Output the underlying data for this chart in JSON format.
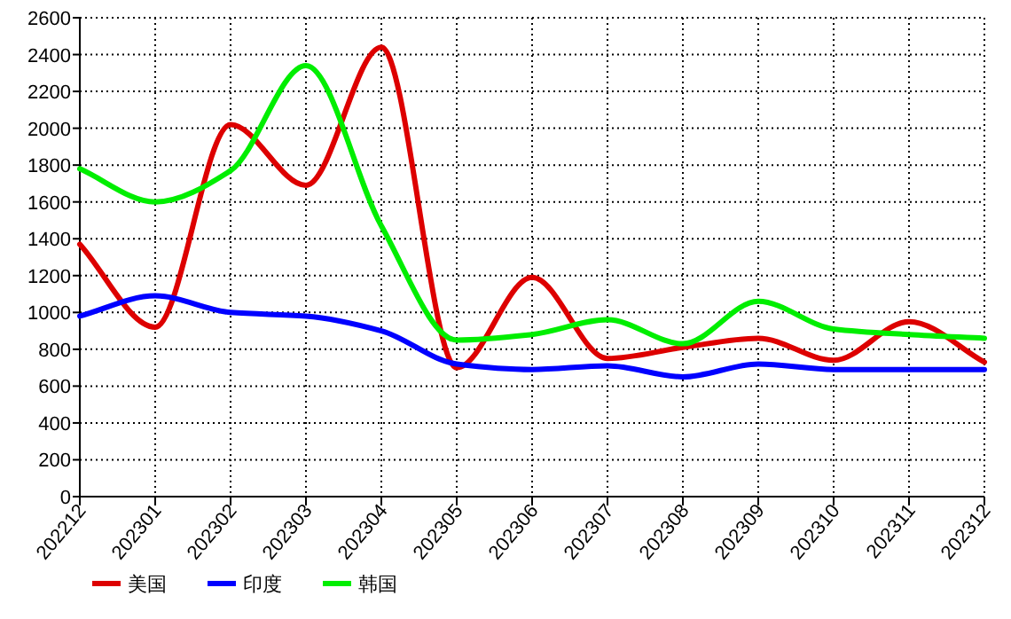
{
  "chart_data": {
    "type": "line",
    "categories": [
      "202212",
      "202301",
      "202302",
      "202303",
      "202304",
      "202305",
      "202306",
      "202307",
      "202308",
      "202309",
      "202310",
      "202311",
      "202312"
    ],
    "series": [
      {
        "name": "美国",
        "color": "#dd0000",
        "values": [
          1370,
          920,
          2020,
          1690,
          2440,
          700,
          1190,
          750,
          810,
          860,
          740,
          950,
          730
        ]
      },
      {
        "name": "印度",
        "color": "#0000ff",
        "values": [
          980,
          1090,
          1000,
          980,
          900,
          720,
          690,
          710,
          650,
          720,
          690,
          690,
          690
        ]
      },
      {
        "name": "韩国",
        "color": "#00ee00",
        "values": [
          1780,
          1600,
          1770,
          2340,
          1470,
          850,
          880,
          960,
          830,
          1060,
          910,
          880,
          860
        ]
      }
    ],
    "ylim": [
      0,
      2600
    ],
    "yticks": [
      0,
      200,
      400,
      600,
      800,
      1000,
      1200,
      1400,
      1600,
      1800,
      2000,
      2200,
      2400,
      2600
    ],
    "grid": true,
    "legend": "bottom"
  }
}
